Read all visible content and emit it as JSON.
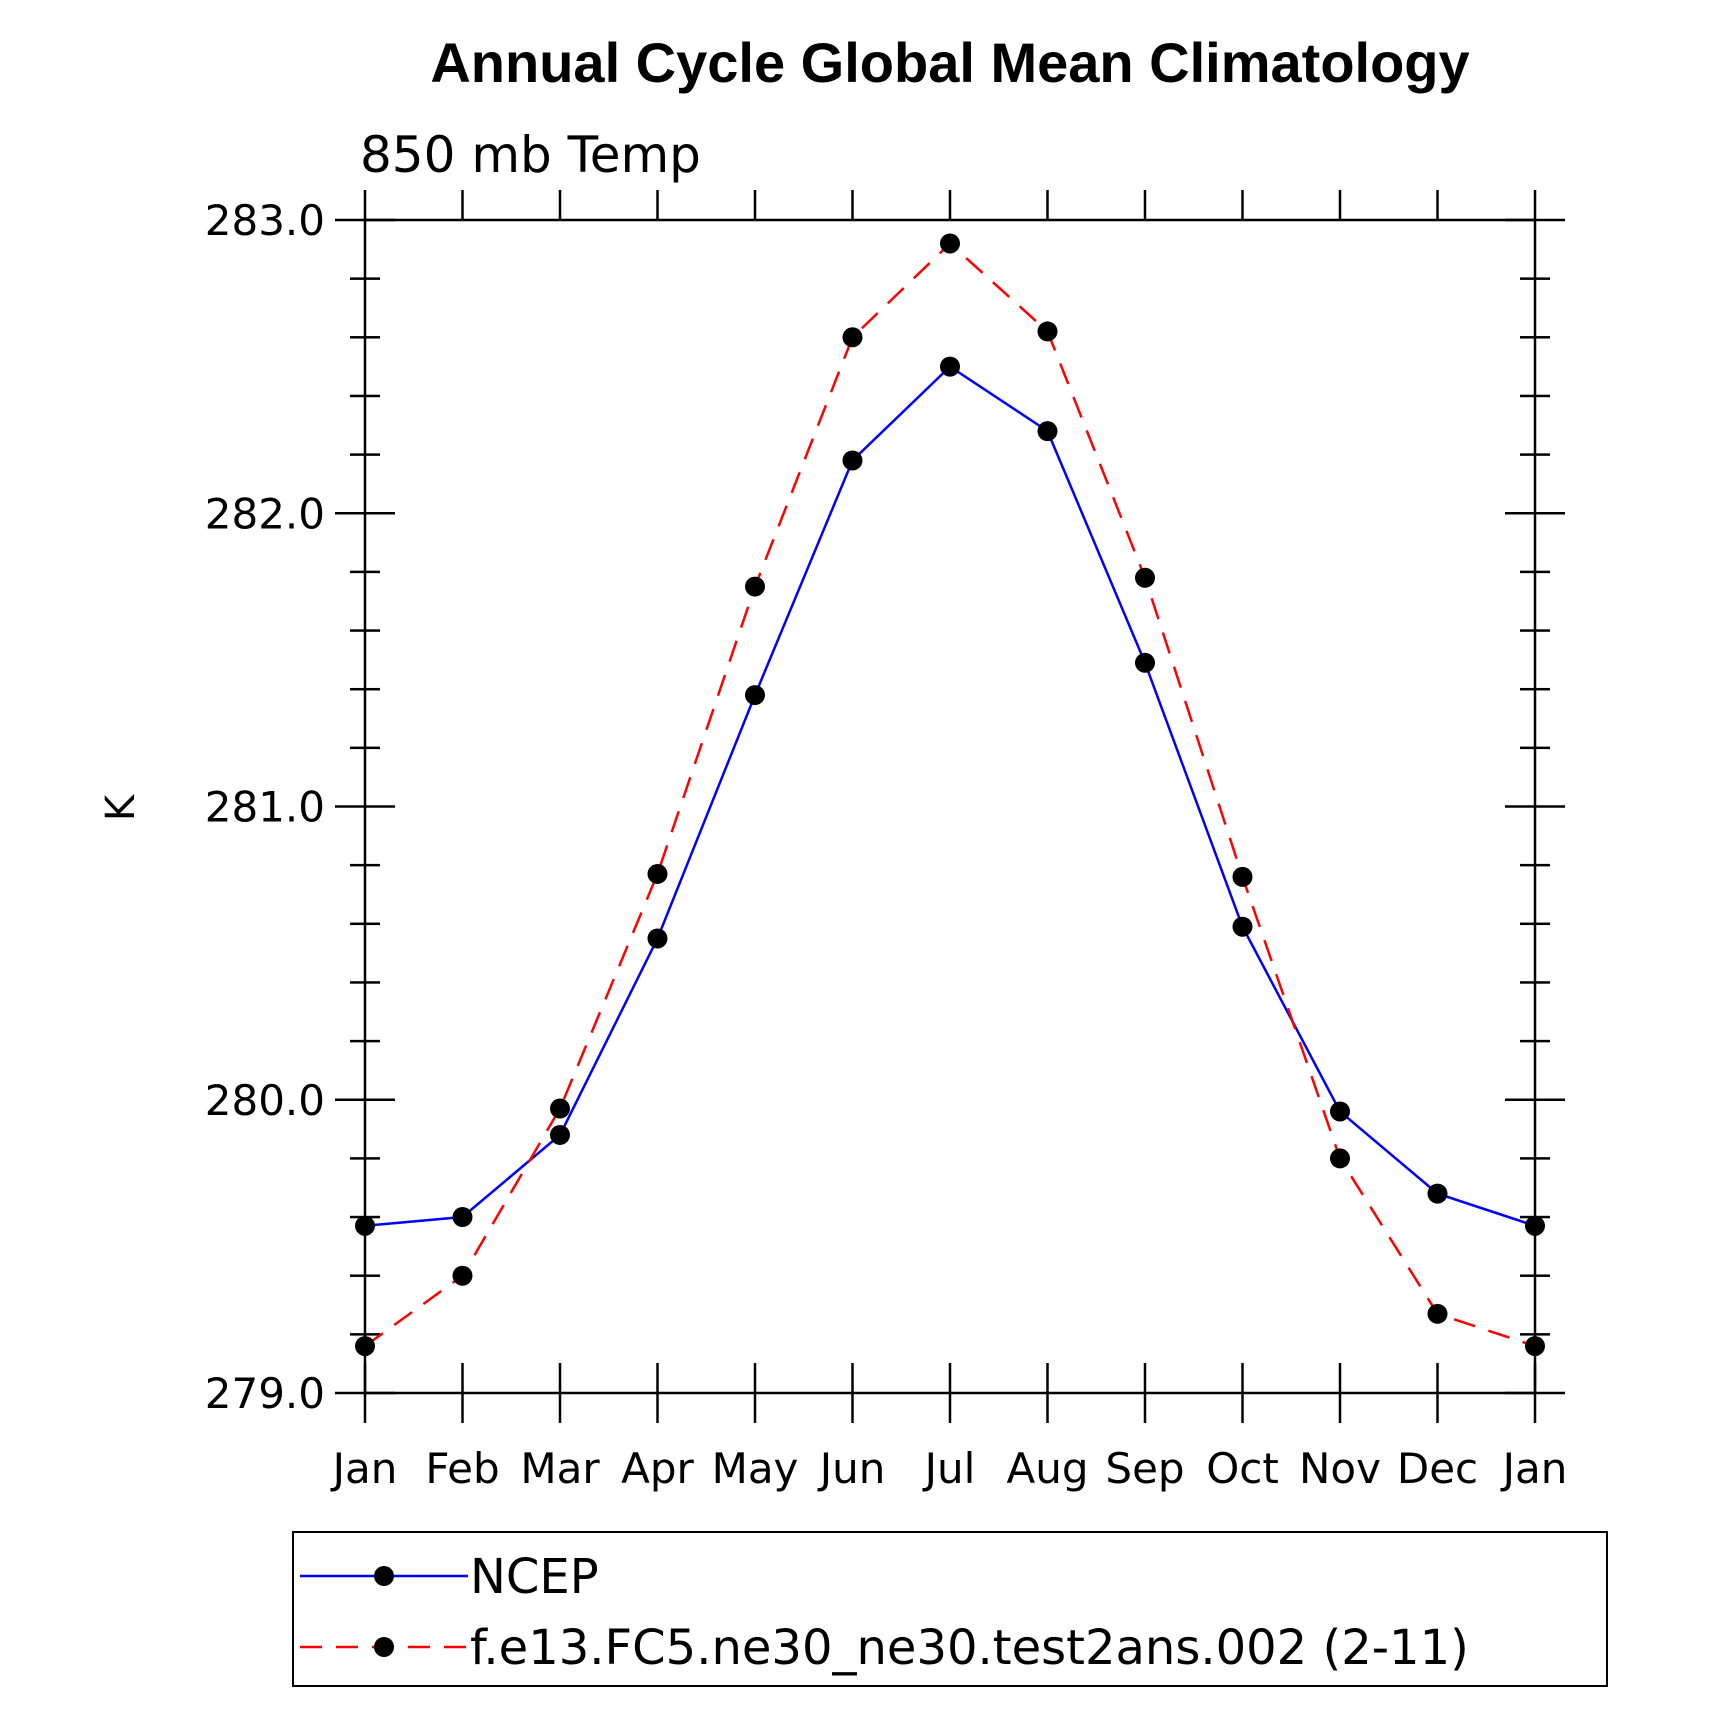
{
  "chart_data": {
    "type": "line",
    "title": "Annual Cycle Global Mean Climatology",
    "subtitle": "850 mb Temp",
    "ylabel": "K",
    "xlabel": "",
    "categories": [
      "Jan",
      "Feb",
      "Mar",
      "Apr",
      "May",
      "Jun",
      "Jul",
      "Aug",
      "Sep",
      "Oct",
      "Nov",
      "Dec",
      "Jan"
    ],
    "ylim": [
      279.0,
      283.0
    ],
    "yticks": [
      "279.0",
      "280.0",
      "281.0",
      "282.0",
      "283.0"
    ],
    "grid": false,
    "legend_position": "bottom",
    "series": [
      {
        "name": "NCEP",
        "color": "#0000ff",
        "line_style": "solid",
        "marker": "filled-circle",
        "values": [
          279.57,
          279.6,
          279.88,
          280.55,
          281.38,
          282.18,
          282.5,
          282.28,
          281.49,
          280.59,
          279.96,
          279.68,
          279.57
        ]
      },
      {
        "name": "f.e13.FC5.ne30_ne30.test2ans.002 (2-11)",
        "color": "#ff0000",
        "line_style": "dashed",
        "marker": "filled-circle",
        "values": [
          279.16,
          279.4,
          279.97,
          280.77,
          281.75,
          282.6,
          282.92,
          282.62,
          281.78,
          280.76,
          279.8,
          279.27,
          279.16
        ]
      }
    ]
  }
}
